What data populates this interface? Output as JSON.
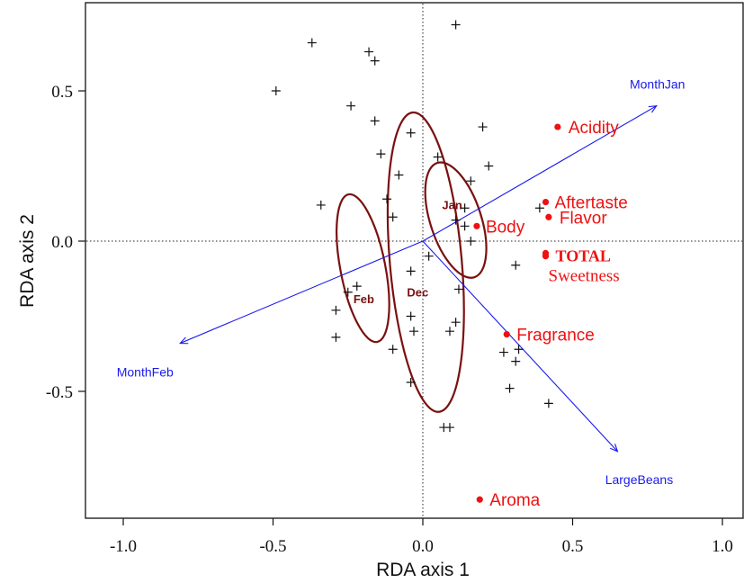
{
  "chart_data": {
    "type": "scatter",
    "title": "",
    "xlabel": "RDA axis 1",
    "ylabel": "RDA axis 2",
    "xlim": [
      -1.1,
      1.08
    ],
    "ylim": [
      -0.92,
      0.78
    ],
    "x_ticks": [
      {
        "value": -1.0,
        "label": "-1.0"
      },
      {
        "value": -0.5,
        "label": "-0.5"
      },
      {
        "value": 0.0,
        "label": "0.0"
      },
      {
        "value": 0.5,
        "label": "0.5"
      },
      {
        "value": 1.0,
        "label": "1.0"
      }
    ],
    "y_ticks": [
      {
        "value": -0.5,
        "label": "-0.5"
      },
      {
        "value": 0.0,
        "label": "0.0"
      },
      {
        "value": 0.5,
        "label": "0.5"
      }
    ],
    "grid": false,
    "reference_lines": {
      "x": 0,
      "y": 0,
      "style": "dotted"
    },
    "samples": {
      "marker": "+",
      "color": "#111111",
      "points": [
        [
          -0.37,
          0.66
        ],
        [
          0.11,
          0.72
        ],
        [
          -0.18,
          0.63
        ],
        [
          -0.16,
          0.6
        ],
        [
          -0.49,
          0.5
        ],
        [
          -0.24,
          0.45
        ],
        [
          -0.16,
          0.4
        ],
        [
          0.2,
          0.38
        ],
        [
          -0.04,
          0.36
        ],
        [
          -0.14,
          0.29
        ],
        [
          0.05,
          0.28
        ],
        [
          0.22,
          0.25
        ],
        [
          -0.08,
          0.22
        ],
        [
          0.16,
          0.2
        ],
        [
          -0.12,
          0.14
        ],
        [
          -0.34,
          0.12
        ],
        [
          0.14,
          0.11
        ],
        [
          0.39,
          0.11
        ],
        [
          -0.1,
          0.08
        ],
        [
          0.11,
          0.07
        ],
        [
          0.14,
          0.05
        ],
        [
          0.16,
          0.0
        ],
        [
          0.02,
          -0.05
        ],
        [
          0.31,
          -0.08
        ],
        [
          -0.04,
          -0.1
        ],
        [
          -0.25,
          -0.17
        ],
        [
          -0.22,
          -0.15
        ],
        [
          0.12,
          -0.16
        ],
        [
          -0.29,
          -0.23
        ],
        [
          -0.04,
          -0.25
        ],
        [
          0.11,
          -0.27
        ],
        [
          -0.03,
          -0.3
        ],
        [
          0.09,
          -0.3
        ],
        [
          -0.29,
          -0.32
        ],
        [
          0.32,
          -0.36
        ],
        [
          -0.1,
          -0.36
        ],
        [
          0.27,
          -0.37
        ],
        [
          0.31,
          -0.4
        ],
        [
          -0.04,
          -0.47
        ],
        [
          0.29,
          -0.49
        ],
        [
          0.42,
          -0.54
        ],
        [
          0.07,
          -0.62
        ],
        [
          0.09,
          -0.62
        ]
      ]
    },
    "response_variables": [
      {
        "name": "Acidity",
        "x": 0.45,
        "y": 0.38
      },
      {
        "name": "Aftertaste",
        "x": 0.41,
        "y": 0.13
      },
      {
        "name": "Flavor",
        "x": 0.42,
        "y": 0.08
      },
      {
        "name": "Body",
        "x": 0.18,
        "y": 0.05
      },
      {
        "name": "TOTAL",
        "x": 0.41,
        "y": -0.04
      },
      {
        "name": "Sweetness",
        "x": 0.41,
        "y": -0.05
      },
      {
        "name": "Fragrance",
        "x": 0.28,
        "y": -0.31
      },
      {
        "name": "Aroma",
        "x": 0.19,
        "y": -0.86
      }
    ],
    "explanatory_vectors": [
      {
        "name": "MonthJan",
        "x": 0.78,
        "y": 0.45
      },
      {
        "name": "MonthFeb",
        "x": -0.81,
        "y": -0.34
      },
      {
        "name": "LargeBeans",
        "x": 0.65,
        "y": -0.7
      }
    ],
    "group_ellipses": [
      {
        "label": "Jan",
        "cx": 0.11,
        "cy": 0.07,
        "rx": 0.085,
        "ry": 0.2,
        "angle_deg": -18
      },
      {
        "label": "Feb",
        "cx": -0.2,
        "cy": -0.09,
        "rx": 0.075,
        "ry": 0.25,
        "angle_deg": -11
      },
      {
        "label": "Dec",
        "cx": 0.01,
        "cy": -0.07,
        "rx": 0.12,
        "ry": 0.5,
        "angle_deg": -5
      }
    ],
    "colors": {
      "samples": "#111111",
      "response": "#ee1111",
      "vectors": "#1a1aee",
      "ellipses": "#7a1010",
      "reference": "#222222"
    }
  }
}
